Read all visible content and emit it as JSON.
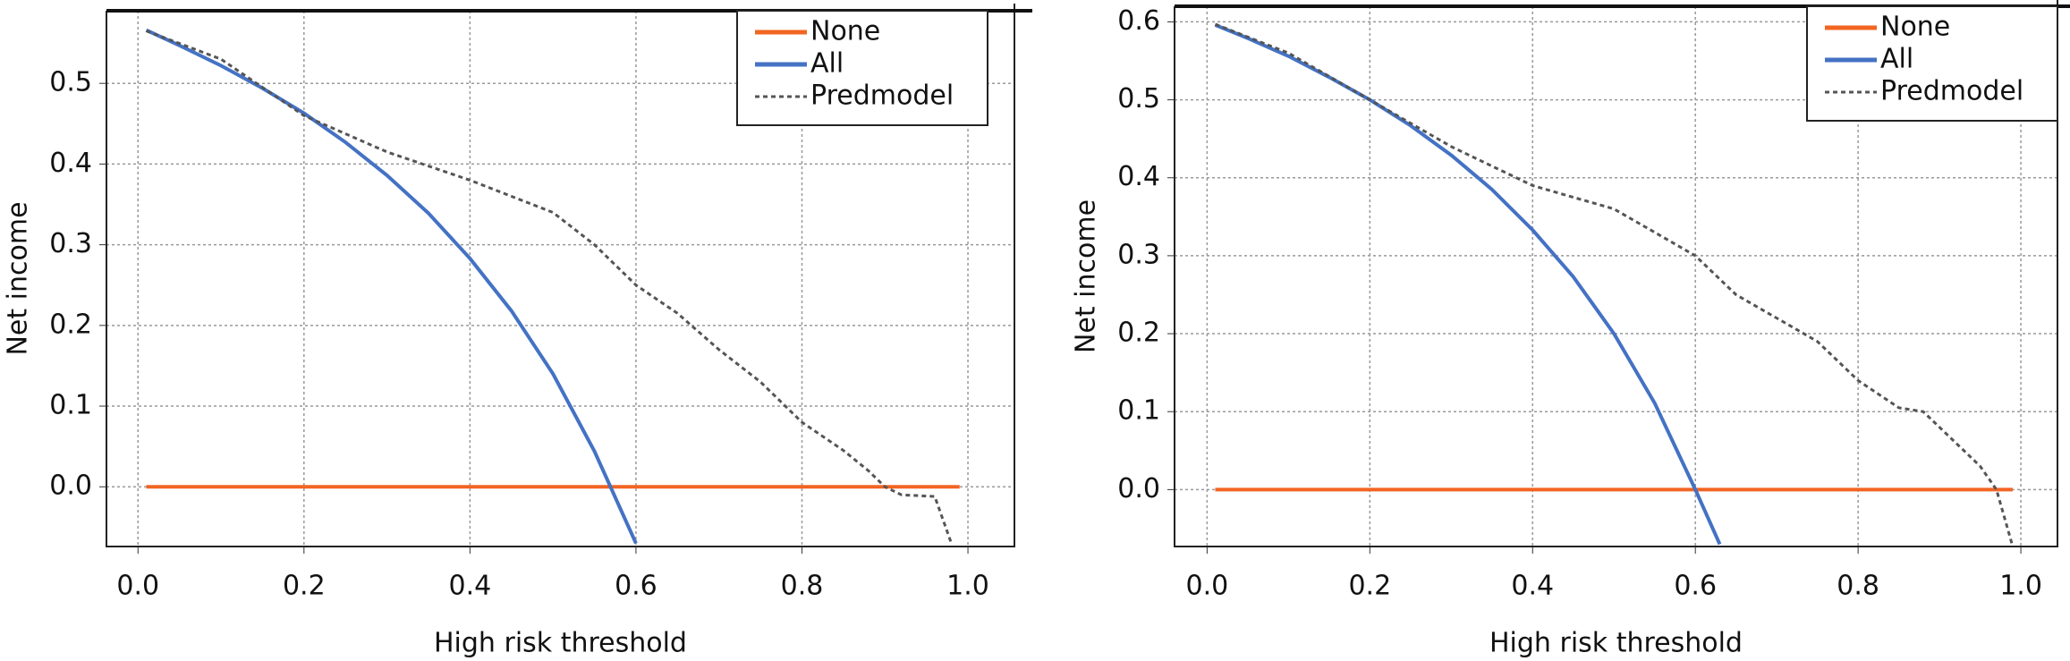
{
  "chart_data": [
    {
      "type": "line",
      "xlabel": "High risk threshold",
      "ylabel": "Net income",
      "xlim": [
        -0.038,
        1.056
      ],
      "ylim": [
        -0.074,
        0.59
      ],
      "xticks": [
        {
          "value": 0,
          "label": "0.0"
        },
        0.2,
        0.4,
        0.6,
        0.8,
        {
          "value": 1,
          "label": "1.0"
        }
      ],
      "yticks": [
        {
          "value": 0,
          "label": "0.0"
        },
        0.1,
        0.2,
        0.3,
        0.4,
        0.5
      ],
      "grid": true,
      "legend": "upper right",
      "series": [
        {
          "name": "None",
          "color": "#f26522",
          "dash": "solid",
          "x": [
            0.01,
            0.99
          ],
          "values": [
            0,
            0
          ]
        },
        {
          "name": "All",
          "color": "#4472c4",
          "dash": "solid",
          "x": [
            0.01,
            0.05,
            0.1,
            0.15,
            0.2,
            0.25,
            0.3,
            0.35,
            0.4,
            0.45,
            0.5,
            0.55,
            0.6
          ],
          "values": [
            0.566,
            0.547,
            0.522,
            0.494,
            0.463,
            0.427,
            0.386,
            0.339,
            0.283,
            0.218,
            0.14,
            0.044,
            -0.07
          ]
        },
        {
          "name": "Predmodel",
          "color": "#555555",
          "dash": "dotted",
          "x": [
            0.01,
            0.1,
            0.2,
            0.3,
            0.4,
            0.45,
            0.5,
            0.55,
            0.6,
            0.65,
            0.7,
            0.75,
            0.8,
            0.85,
            0.88,
            0.9,
            0.92,
            0.96,
            0.98
          ],
          "values": [
            0.565,
            0.53,
            0.46,
            0.415,
            0.38,
            0.36,
            0.34,
            0.3,
            0.25,
            0.215,
            0.17,
            0.13,
            0.08,
            0.045,
            0.02,
            0,
            -0.01,
            -0.012,
            -0.07
          ]
        }
      ]
    },
    {
      "type": "line",
      "xlabel": "High risk threshold",
      "ylabel": "Net income",
      "xlim": [
        -0.04,
        1.045
      ],
      "ylim": [
        -0.073,
        0.62
      ],
      "xticks": [
        {
          "value": 0,
          "label": "0.0"
        },
        0.2,
        0.4,
        0.6,
        0.8,
        {
          "value": 1,
          "label": "1.0"
        }
      ],
      "yticks": [
        {
          "value": 0,
          "label": "0.0"
        },
        0.1,
        0.2,
        0.3,
        0.4,
        0.5,
        0.6
      ],
      "grid": true,
      "legend": "upper right",
      "series": [
        {
          "name": "None",
          "color": "#f26522",
          "dash": "solid",
          "x": [
            0.01,
            0.99
          ],
          "values": [
            0,
            0
          ]
        },
        {
          "name": "All",
          "color": "#4472c4",
          "dash": "solid",
          "x": [
            0.01,
            0.05,
            0.1,
            0.15,
            0.2,
            0.25,
            0.3,
            0.35,
            0.4,
            0.45,
            0.5,
            0.55,
            0.6,
            0.63
          ],
          "values": [
            0.596,
            0.579,
            0.556,
            0.529,
            0.5,
            0.467,
            0.429,
            0.385,
            0.333,
            0.273,
            0.2,
            0.111,
            0,
            -0.07
          ]
        },
        {
          "name": "Predmodel",
          "color": "#555555",
          "dash": "dotted",
          "x": [
            0.01,
            0.1,
            0.2,
            0.3,
            0.4,
            0.45,
            0.5,
            0.55,
            0.6,
            0.65,
            0.7,
            0.75,
            0.8,
            0.85,
            0.88,
            0.92,
            0.95,
            0.97,
            0.99
          ],
          "values": [
            0.597,
            0.56,
            0.5,
            0.44,
            0.39,
            0.375,
            0.36,
            0.33,
            0.3,
            0.25,
            0.22,
            0.19,
            0.14,
            0.105,
            0.1,
            0.06,
            0.03,
            0,
            -0.073
          ]
        }
      ]
    }
  ]
}
